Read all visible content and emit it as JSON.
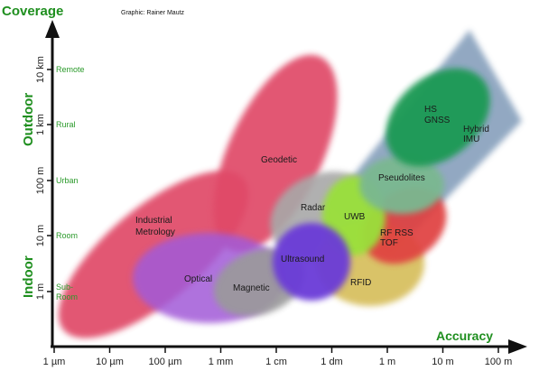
{
  "title": "Coverage",
  "credit": "Graphic: Rainer Mautz",
  "x_axis": {
    "title": "Accuracy",
    "ticks": [
      "1 µm",
      "10 µm",
      "100 µm",
      "1 mm",
      "1 cm",
      "1 dm",
      "1 m",
      "10 m",
      "100 m"
    ]
  },
  "y_axis": {
    "ticks": [
      "1 m",
      "10 m",
      "100 m",
      "1 km",
      "10 km"
    ],
    "categories": [
      "Sub-Room",
      "Room",
      "Urban",
      "Rural",
      "Remote"
    ],
    "outdoor_label": "Outdoor",
    "indoor_label": "Indoor"
  },
  "technologies": {
    "geodetic": "Geodetic",
    "industrial_metrology": "Industrial Metrology",
    "optical": "Optical",
    "magnetic": "Magnetic",
    "radar": "Radar",
    "ultrasound": "Ultrasound",
    "uwb": "UWB",
    "rfid": "RFID",
    "rf_rss_tof": "RF RSS TOF",
    "pseudolites": "Pseudolites",
    "hs_gnss": "HS GNSS",
    "hybrid_imu": "Hybrid IMU"
  },
  "colors": {
    "axis_title": "#1f8f1f",
    "category_text": "#2a9a2a",
    "industrial": "#e04a68",
    "geodetic": "#e04a68",
    "optical": "#a25ad8",
    "magnetic": "#9a9a9a",
    "radar": "#a8a8a8",
    "ultrasound": "#6a3ad8",
    "uwb": "#9ae03a",
    "rfid": "#d8c060",
    "rf_rss_tof": "#e04040",
    "pseudolites": "#7ab890",
    "hs_gnss": "#1e9a54",
    "hybrid_imu": "#7f9ab8"
  }
}
